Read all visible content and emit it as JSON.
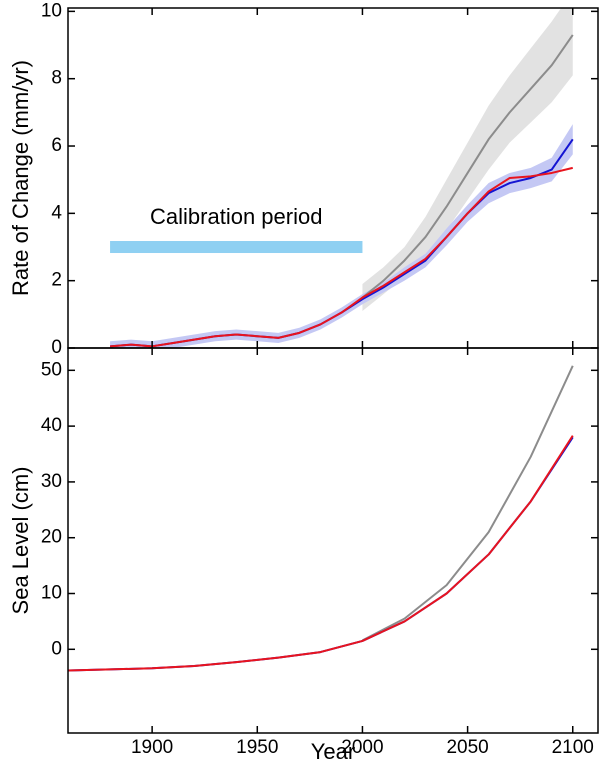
{
  "chart_data": [
    {
      "type": "line",
      "ylabel": "Rate of Change (mm/yr)",
      "x": [
        1880,
        1890,
        1900,
        1910,
        1920,
        1930,
        1940,
        1950,
        1960,
        1970,
        1980,
        1990,
        2000,
        2010,
        2020,
        2030,
        2040,
        2050,
        2060,
        2070,
        2080,
        2090,
        2100
      ],
      "xlim": [
        1860,
        2112
      ],
      "xticks": [
        1900,
        1950,
        2000,
        2050,
        2100
      ],
      "ylim": [
        0,
        10.1
      ],
      "yticks": [
        0,
        2,
        4,
        6,
        8,
        10
      ],
      "bands": [
        {
          "color": "#e2e2e2",
          "lower": [
            null,
            null,
            null,
            null,
            null,
            null,
            null,
            null,
            null,
            null,
            null,
            null,
            1.1,
            1.6,
            2.1,
            2.7,
            3.5,
            4.4,
            5.3,
            6.1,
            6.7,
            7.3,
            8.1
          ],
          "upper": [
            null,
            null,
            null,
            null,
            null,
            null,
            null,
            null,
            null,
            null,
            null,
            null,
            1.9,
            2.4,
            3.0,
            3.9,
            5.0,
            6.1,
            7.2,
            8.1,
            8.9,
            9.7,
            10.6
          ]
        },
        {
          "color": "#c4c8f4",
          "lower": [
            -0.1,
            -0.05,
            -0.1,
            0.0,
            0.1,
            0.2,
            0.25,
            0.2,
            0.15,
            0.3,
            0.55,
            0.9,
            1.3,
            1.65,
            2.0,
            2.4,
            3.05,
            3.75,
            4.3,
            4.6,
            4.75,
            4.95,
            5.75
          ],
          "upper": [
            0.2,
            0.25,
            0.2,
            0.3,
            0.4,
            0.5,
            0.55,
            0.5,
            0.45,
            0.6,
            0.85,
            1.2,
            1.6,
            1.95,
            2.4,
            2.8,
            3.55,
            4.25,
            4.9,
            5.2,
            5.35,
            5.65,
            6.65
          ]
        }
      ],
      "series": [
        {
          "color": "#8c8c8c",
          "values": [
            null,
            null,
            null,
            null,
            null,
            null,
            null,
            null,
            null,
            null,
            null,
            null,
            1.5,
            2.0,
            2.6,
            3.3,
            4.2,
            5.2,
            6.2,
            7.0,
            7.7,
            8.4,
            9.3
          ]
        },
        {
          "color": "#1414d2",
          "values": [
            0.05,
            0.1,
            0.05,
            0.15,
            0.25,
            0.35,
            0.4,
            0.35,
            0.3,
            0.45,
            0.7,
            1.05,
            1.45,
            1.8,
            2.2,
            2.6,
            3.3,
            4.0,
            4.6,
            4.9,
            5.05,
            5.3,
            6.2
          ]
        },
        {
          "color": "#e8141e",
          "values": [
            0.05,
            0.1,
            0.05,
            0.15,
            0.25,
            0.35,
            0.4,
            0.35,
            0.3,
            0.45,
            0.7,
            1.05,
            1.5,
            1.85,
            2.25,
            2.65,
            3.3,
            4.0,
            4.65,
            5.05,
            5.1,
            5.2,
            5.35
          ]
        }
      ],
      "calibration": {
        "label": "Calibration period",
        "x": [
          1880,
          2000
        ],
        "y": 3,
        "color": "#8fd0f2"
      }
    },
    {
      "type": "line",
      "ylabel": "Sea Level (cm)",
      "xlabel": "Year",
      "x": [
        1860,
        1880,
        1900,
        1920,
        1940,
        1960,
        1980,
        2000,
        2020,
        2040,
        2060,
        2080,
        2100
      ],
      "xlim": [
        1860,
        2112
      ],
      "xticks": [
        1900,
        1950,
        2000,
        2050,
        2100
      ],
      "ylim": [
        -15,
        54
      ],
      "yticks": [
        0,
        10,
        20,
        30,
        40,
        50
      ],
      "series": [
        {
          "color": "#8c8c8c",
          "values": [
            null,
            null,
            null,
            null,
            null,
            null,
            null,
            1.6,
            5.5,
            11.5,
            21,
            34.5,
            50.8
          ]
        },
        {
          "color": "#1414d2",
          "values": [
            -3.8,
            -3.6,
            -3.4,
            -3.0,
            -2.3,
            -1.5,
            -0.5,
            1.5,
            5.0,
            10.0,
            17.0,
            26.5,
            38.0
          ]
        },
        {
          "color": "#e8141e",
          "values": [
            -3.8,
            -3.6,
            -3.4,
            -3.0,
            -2.3,
            -1.5,
            -0.5,
            1.5,
            5.0,
            10.0,
            17.0,
            26.5,
            38.3
          ]
        }
      ]
    }
  ]
}
